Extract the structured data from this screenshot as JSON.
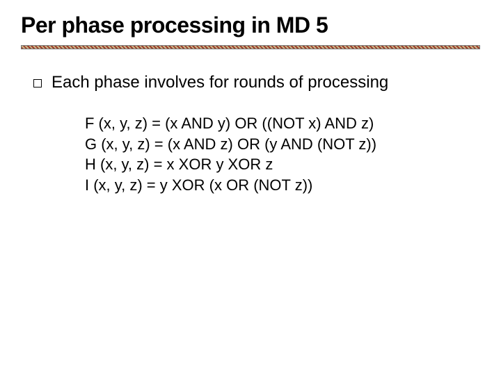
{
  "title": "Per phase processing in MD 5",
  "bullet": "Each phase involves for rounds of processing",
  "formulas": {
    "f": "F (x, y, z) = (x AND y) OR ((NOT x) AND z)",
    "g": "G (x, y, z) = (x AND z) OR (y AND (NOT z))",
    "h": "H (x, y, z) = x XOR y XOR z",
    "i": "I (x, y, z) = y XOR (x OR (NOT z))"
  },
  "colors": {
    "background": "#ffffff",
    "text": "#000000",
    "divider_stripe_a": "#9b3a2a",
    "divider_stripe_b": "#c9b98a"
  },
  "typography": {
    "title_fontsize": 32,
    "bullet_fontsize": 24,
    "formula_fontsize": 22,
    "font_family": "Comic Sans MS"
  }
}
